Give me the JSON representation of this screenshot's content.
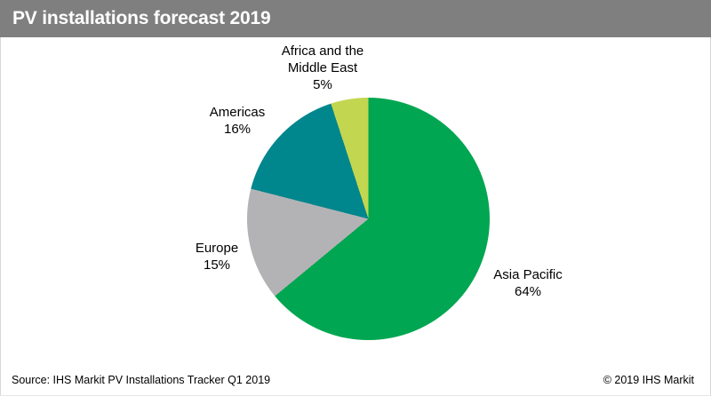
{
  "header": {
    "title": "PV installations forecast 2019",
    "bg_color": "#7f7f7f",
    "text_color": "#ffffff"
  },
  "chart_data": {
    "type": "pie",
    "title": "PV installations forecast 2019",
    "start_angle_deg": 0,
    "direction": "clockwise",
    "slices": [
      {
        "label": "Asia Pacific",
        "value_pct": 64,
        "pct_label": "64%",
        "color": "#00a651"
      },
      {
        "label": "Europe",
        "value_pct": 15,
        "pct_label": "15%",
        "color": "#b3b3b5"
      },
      {
        "label": "Americas",
        "value_pct": 16,
        "pct_label": "16%",
        "color": "#00868d"
      },
      {
        "label": "Africa and the Middle East",
        "value_pct": 5,
        "pct_label": "5%",
        "color": "#c3d650"
      }
    ]
  },
  "callouts": {
    "africa": {
      "line1": "Africa and the",
      "line2": "Middle East"
    }
  },
  "footer": {
    "source": "Source: IHS Markit PV Installations Tracker Q1 2019",
    "copyright": "© 2019 IHS Markit"
  }
}
